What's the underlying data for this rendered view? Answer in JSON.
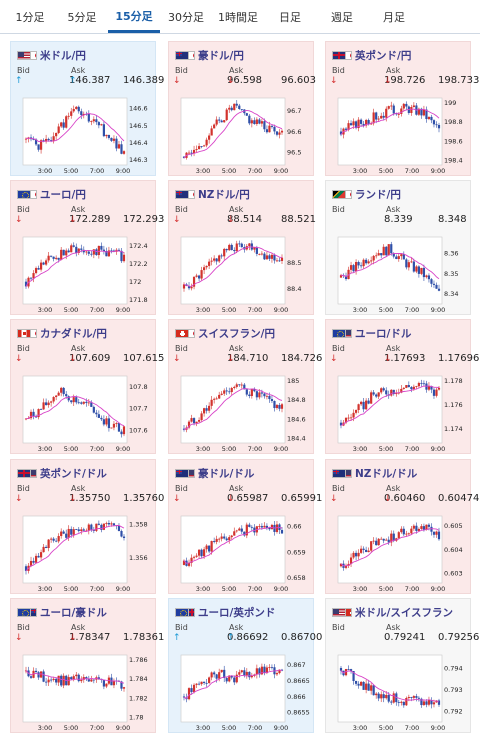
{
  "tabs": [
    {
      "label": "1分足"
    },
    {
      "label": "5分足"
    },
    {
      "label": "15分足"
    },
    {
      "label": "30分足"
    },
    {
      "label": "1時間足"
    },
    {
      "label": "日足"
    },
    {
      "label": "週足"
    },
    {
      "label": "月足"
    }
  ],
  "active_tab": 2,
  "bid_label": "Bid",
  "ask_label": "Ask",
  "time_labels": [
    "3:00",
    "5:00",
    "7:00",
    "9:00"
  ],
  "colors": {
    "candle_up": "#d2322d",
    "candle_down": "#2f4fa8",
    "ma_line": "#d844c8",
    "arrow_up": "#1c9ad6",
    "arrow_down": "#d43030"
  },
  "pairs": [
    {
      "name": "米ドル/円",
      "flag": "us-flag-icon",
      "dir": "up",
      "bid": "146.387",
      "ask": "146.389",
      "y_ticks": [
        "146.6",
        "146.5",
        "146.4",
        "146.3"
      ],
      "y_range": [
        146.27,
        146.66
      ],
      "trend": [
        146.42,
        146.38,
        146.48,
        146.6,
        146.52,
        146.45,
        146.35
      ]
    },
    {
      "name": "豪ドル/円",
      "flag": "au-flag-icon",
      "dir": "down",
      "bid": "96.598",
      "ask": "96.603",
      "y_ticks": [
        "96.7",
        "96.6",
        "96.5"
      ],
      "y_range": [
        96.44,
        96.76
      ],
      "trend": [
        96.48,
        96.53,
        96.64,
        96.72,
        96.66,
        96.62,
        96.6
      ]
    },
    {
      "name": "英ポンド/円",
      "flag": "gb-flag-icon",
      "dir": "down",
      "bid": "198.726",
      "ask": "198.733",
      "y_ticks": [
        "199",
        "198.8",
        "198.6",
        "198.4"
      ],
      "y_range": [
        198.35,
        199.05
      ],
      "trend": [
        198.7,
        198.78,
        198.85,
        198.92,
        198.95,
        198.9,
        198.72
      ]
    },
    {
      "name": "ユーロ/円",
      "flag": "eu-flag-icon",
      "dir": "down",
      "bid": "172.289",
      "ask": "172.293",
      "y_ticks": [
        "172.4",
        "172.2",
        "172",
        "171.8"
      ],
      "y_range": [
        171.75,
        172.5
      ],
      "trend": [
        172.0,
        172.2,
        172.3,
        172.38,
        172.35,
        172.33,
        172.28
      ]
    },
    {
      "name": "NZドル/円",
      "flag": "nz-flag-icon",
      "dir": "down",
      "bid": "88.514",
      "ask": "88.521",
      "y_ticks": [
        "88.5",
        "88.4"
      ],
      "y_range": [
        88.34,
        88.6
      ],
      "trend": [
        88.4,
        88.45,
        88.52,
        88.56,
        88.57,
        88.53,
        88.51
      ]
    },
    {
      "name": "ランド/円",
      "flag": "za-flag-icon",
      "dir": "flat",
      "bid": "8.339",
      "ask": "8.348",
      "y_ticks": [
        "8.36",
        "8.35",
        "8.34"
      ],
      "y_range": [
        8.335,
        8.368
      ],
      "trend": [
        8.348,
        8.354,
        8.36,
        8.362,
        8.355,
        8.35,
        8.34
      ]
    },
    {
      "name": "カナダドル/円",
      "flag": "ca-flag-icon",
      "dir": "down",
      "bid": "107.609",
      "ask": "107.615",
      "y_ticks": [
        "107.8",
        "107.7",
        "107.6"
      ],
      "y_range": [
        107.54,
        107.85
      ],
      "trend": [
        107.65,
        107.7,
        107.78,
        107.74,
        107.7,
        107.63,
        107.6
      ]
    },
    {
      "name": "スイスフラン/円",
      "flag": "ch-flag-icon",
      "dir": "down",
      "bid": "184.710",
      "ask": "184.726",
      "y_ticks": [
        "185",
        "184.8",
        "184.6",
        "184.4"
      ],
      "y_range": [
        184.35,
        185.05
      ],
      "trend": [
        184.5,
        184.65,
        184.82,
        184.95,
        184.88,
        184.8,
        184.71
      ]
    },
    {
      "name": "ユーロ/ドル",
      "flag": "eu-flag-icon",
      "dir": "down",
      "bid": "1.17693",
      "ask": "1.17696",
      "y_ticks": [
        "1.178",
        "1.176",
        "1.174"
      ],
      "y_range": [
        1.1728,
        1.1784
      ],
      "trend": [
        1.1745,
        1.1755,
        1.1768,
        1.1772,
        1.1775,
        1.1776,
        1.177
      ]
    },
    {
      "name": "英ポンド/ドル",
      "flag": "gb-flag-icon",
      "dir": "down",
      "bid": "1.35750",
      "ask": "1.35760",
      "y_ticks": [
        "1.358",
        "1.356"
      ],
      "y_range": [
        1.3545,
        1.3585
      ],
      "trend": [
        1.3555,
        1.3566,
        1.3572,
        1.3576,
        1.3579,
        1.358,
        1.3575
      ]
    },
    {
      "name": "豪ドル/ドル",
      "flag": "au-flag-icon",
      "dir": "down",
      "bid": "0.65987",
      "ask": "0.65991",
      "y_ticks": [
        "0.66",
        "0.659",
        "0.658"
      ],
      "y_range": [
        0.6578,
        0.6604
      ],
      "trend": [
        0.6585,
        0.659,
        0.6594,
        0.6597,
        0.6599,
        0.66,
        0.6599
      ]
    },
    {
      "name": "NZドル/ドル",
      "flag": "nz-flag-icon",
      "dir": "down",
      "bid": "0.60460",
      "ask": "0.60474",
      "y_ticks": [
        "0.605",
        "0.604",
        "0.603"
      ],
      "y_range": [
        0.6026,
        0.6054
      ],
      "trend": [
        0.6033,
        0.6038,
        0.6042,
        0.6045,
        0.6048,
        0.605,
        0.6046
      ]
    },
    {
      "name": "ユーロ/豪ドル",
      "flag": "eu-flag-icon",
      "dir": "down",
      "bid": "1.78347",
      "ask": "1.78361",
      "y_ticks": [
        "1.786",
        "1.784",
        "1.782",
        "1.78"
      ],
      "y_range": [
        1.7795,
        1.7865
      ],
      "trend": [
        1.7848,
        1.7842,
        1.7838,
        1.784,
        1.7837,
        1.7836,
        1.7835
      ]
    },
    {
      "name": "ユーロ/英ポンド",
      "flag": "eu-flag-icon",
      "dir": "up",
      "bid": "0.86692",
      "ask": "0.86700",
      "y_ticks": [
        "0.867",
        "0.8665",
        "0.866",
        "0.8655"
      ],
      "y_range": [
        0.8652,
        0.8673
      ],
      "trend": [
        0.866,
        0.8664,
        0.8667,
        0.8666,
        0.8667,
        0.8668,
        0.8669
      ]
    },
    {
      "name": "米ドル/スイスフラン",
      "flag": "us-flag-icon",
      "dir": "flat",
      "bid": "0.79241",
      "ask": "0.79256",
      "y_ticks": [
        "0.794",
        "0.793",
        "0.792"
      ],
      "y_range": [
        0.7915,
        0.7946
      ],
      "trend": [
        0.794,
        0.7934,
        0.7929,
        0.7926,
        0.7925,
        0.7924,
        0.7924
      ]
    }
  ]
}
